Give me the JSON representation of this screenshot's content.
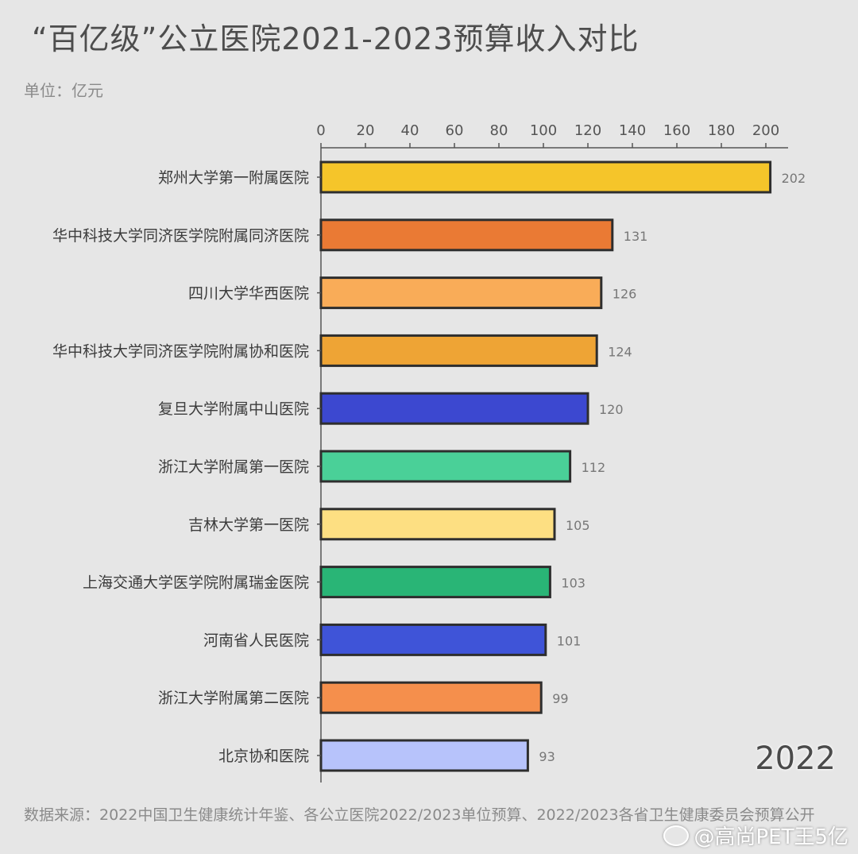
{
  "title": "“百亿级”公立医院2021-2023预算收入对比",
  "unit_label": "单位：亿元",
  "year_label": "2022",
  "source_text": "数据来源：2022中国卫生健康统计年鉴、各公立医院2022/2023单位预算、2022/2023各省卫生健康委员会预算公开",
  "watermark": {
    "icon": "weibo-icon",
    "text": "@高尚PET王5亿"
  },
  "chart_data": {
    "type": "bar",
    "orientation": "horizontal",
    "title": "“百亿级”公立医院2021-2023预算收入对比",
    "xlabel": "",
    "ylabel": "",
    "xlim": [
      0,
      210
    ],
    "ticks": [
      0,
      20,
      40,
      60,
      80,
      100,
      120,
      140,
      160,
      180,
      200
    ],
    "tick_position": "top",
    "grid": false,
    "categories": [
      "郑州大学第一附属医院",
      "华中科技大学同济医学院附属同济医院",
      "四川大学华西医院",
      "华中科技大学同济医学院附属协和医院",
      "复旦大学附属中山医院",
      "浙江大学附属第一医院",
      "吉林大学第一医院",
      "上海交通大学医学院附属瑞金医院",
      "河南省人民医院",
      "浙江大学附属第二医院",
      "北京协和医院"
    ],
    "values": [
      202,
      131,
      126,
      124,
      120,
      112,
      105,
      103,
      101,
      99,
      93
    ],
    "value_labels": [
      "202",
      "131",
      "126",
      "124",
      "120",
      "112",
      "105",
      "103",
      "101",
      "99",
      "93"
    ],
    "colors": [
      "#f5c52a",
      "#ea7a34",
      "#f9ac58",
      "#eea435",
      "#3c48d0",
      "#4ad098",
      "#fddf82",
      "#29b576",
      "#3f54d8",
      "#f58f4c",
      "#b7c3fb"
    ]
  }
}
